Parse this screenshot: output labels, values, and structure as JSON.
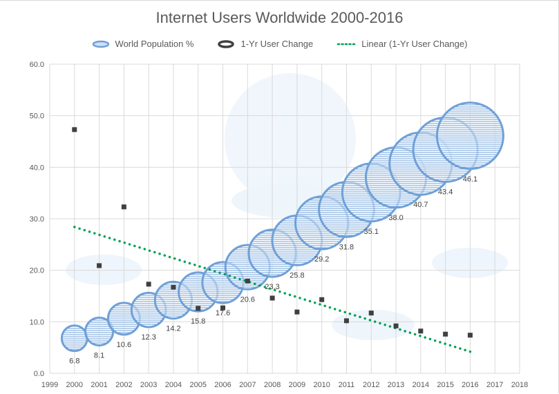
{
  "chart_data": {
    "type": "bubble",
    "title": "Internet Users Worldwide 2000-2016",
    "xlabel": "",
    "ylabel": "",
    "xlim": [
      1999,
      2018
    ],
    "ylim": [
      0,
      60
    ],
    "x_ticks": [
      "1999",
      "2000",
      "2001",
      "2002",
      "2003",
      "2004",
      "2005",
      "2006",
      "2007",
      "2008",
      "2009",
      "2010",
      "2011",
      "2012",
      "2013",
      "2014",
      "2015",
      "2016",
      "2017",
      "2018"
    ],
    "y_ticks": [
      "0.0",
      "10.0",
      "20.0",
      "30.0",
      "40.0",
      "50.0",
      "60.0"
    ],
    "grid": true,
    "legend_position": "top",
    "x": [
      2000,
      2001,
      2002,
      2003,
      2004,
      2005,
      2006,
      2007,
      2008,
      2009,
      2010,
      2011,
      2012,
      2013,
      2014,
      2015,
      2016
    ],
    "series": [
      {
        "name": "World Population %",
        "kind": "bubble",
        "color": "#6fa0d8",
        "values": [
          6.8,
          8.1,
          10.6,
          12.3,
          14.2,
          15.8,
          17.6,
          20.6,
          23.3,
          25.8,
          29.2,
          31.8,
          35.1,
          38.0,
          40.7,
          43.4,
          46.1
        ],
        "labels": [
          "6.8",
          "8.1",
          "10.6",
          "12.3",
          "14.2",
          "15.8",
          "17.6",
          "20.6",
          "23.3",
          "25.8",
          "29.2",
          "31.8",
          "35.1",
          "38.0",
          "40.7",
          "43.4",
          "46.1"
        ]
      },
      {
        "name": "1-Yr User Change",
        "kind": "marker",
        "color": "#404040",
        "values": [
          47.3,
          20.9,
          32.3,
          17.3,
          16.7,
          12.6,
          12.7,
          17.9,
          14.6,
          11.9,
          14.3,
          10.2,
          11.7,
          9.2,
          8.2,
          7.6,
          7.4
        ]
      },
      {
        "name": "Linear (1-Yr User Change)",
        "kind": "trendline",
        "color": "#00a050",
        "from": [
          2000,
          28.4
        ],
        "to": [
          2016,
          4.2
        ]
      }
    ]
  }
}
